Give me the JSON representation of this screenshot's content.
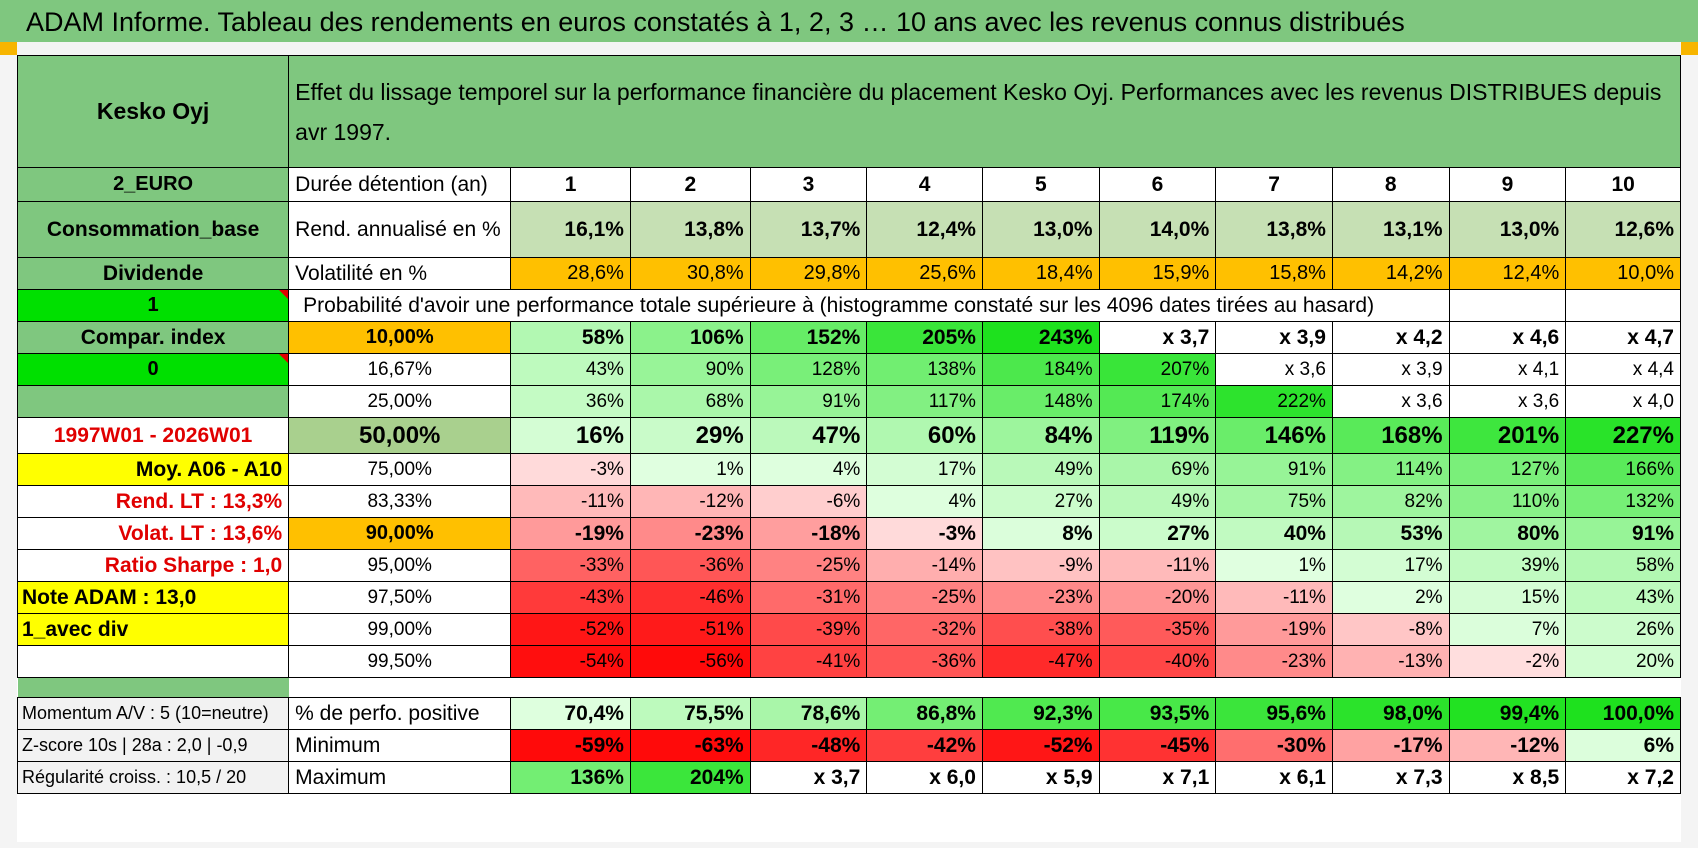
{
  "title": "ADAM Informe. Tableau des rendements en euros constatés à 1, 2, 3 … 10 ans avec les revenus connus distribués",
  "header": {
    "name": "Kesko Oyj",
    "description": "Effet du lissage temporel sur la performance financière du placement Kesko Oyj. Performances avec les revenus DISTRIBUES depuis avr 1997."
  },
  "left_col": {
    "currency": "2_EURO",
    "category": "Consommation_base",
    "dividend": "Dividende",
    "flag1": "1",
    "compar": "Compar. index",
    "flag0": "0",
    "blank": "",
    "period": "1997W01 - 2026W01",
    "moy": "Moy. A06 - A10",
    "rend_lt": "Rend. LT :    13,3%",
    "volat_lt": "Volat. LT :    13,6%",
    "sharpe": "Ratio Sharpe :     1,0",
    "note": "Note ADAM : 13,0",
    "avec_div": "1_avec div",
    "momentum": "Momentum A/V : 5 (10=neutre)",
    "zscore": "Z-score 10s | 28a : 2,0 | -0,9",
    "regularite": "Régularité croiss. : 10,5 / 20"
  },
  "labels": {
    "duree": "Durée détention (an)",
    "rend": "Rend. annualisé en %",
    "vol": "Volatilité en %",
    "prob": "Probabilité d'avoir une performance totale supérieure à (histogramme constaté sur les 4096 dates tirées au hasard)",
    "pct_pos": "% de perfo. positive",
    "minimum": "Minimum",
    "maximum": "Maximum"
  },
  "years": [
    "1",
    "2",
    "3",
    "4",
    "5",
    "6",
    "7",
    "8",
    "9",
    "10"
  ],
  "rend": [
    "16,1%",
    "13,8%",
    "13,7%",
    "12,4%",
    "13,0%",
    "14,0%",
    "13,8%",
    "13,1%",
    "13,0%",
    "12,6%"
  ],
  "vol": [
    "28,6%",
    "30,8%",
    "29,8%",
    "25,6%",
    "18,4%",
    "15,9%",
    "15,8%",
    "14,2%",
    "12,4%",
    "10,0%"
  ],
  "prob_rows": [
    {
      "p": "10,00%",
      "v": [
        "58%",
        "106%",
        "152%",
        "205%",
        "243%",
        "x 3,7",
        "x 3,9",
        "x 4,2",
        "x 4,6",
        "x 4,7"
      ]
    },
    {
      "p": "16,67%",
      "v": [
        "43%",
        "90%",
        "128%",
        "138%",
        "184%",
        "207%",
        "x 3,6",
        "x 3,9",
        "x 4,1",
        "x 4,4"
      ]
    },
    {
      "p": "25,00%",
      "v": [
        "36%",
        "68%",
        "91%",
        "117%",
        "148%",
        "174%",
        "222%",
        "x 3,6",
        "x 3,6",
        "x 4,0"
      ]
    },
    {
      "p": "50,00%",
      "v": [
        "16%",
        "29%",
        "47%",
        "60%",
        "84%",
        "119%",
        "146%",
        "168%",
        "201%",
        "227%"
      ]
    },
    {
      "p": "75,00%",
      "v": [
        "-3%",
        "1%",
        "4%",
        "17%",
        "49%",
        "69%",
        "91%",
        "114%",
        "127%",
        "166%"
      ]
    },
    {
      "p": "83,33%",
      "v": [
        "-11%",
        "-12%",
        "-6%",
        "4%",
        "27%",
        "49%",
        "75%",
        "82%",
        "110%",
        "132%"
      ]
    },
    {
      "p": "90,00%",
      "v": [
        "-19%",
        "-23%",
        "-18%",
        "-3%",
        "8%",
        "27%",
        "40%",
        "53%",
        "80%",
        "91%"
      ]
    },
    {
      "p": "95,00%",
      "v": [
        "-33%",
        "-36%",
        "-25%",
        "-14%",
        "-9%",
        "-11%",
        "1%",
        "17%",
        "39%",
        "58%"
      ]
    },
    {
      "p": "97,50%",
      "v": [
        "-43%",
        "-46%",
        "-31%",
        "-25%",
        "-23%",
        "-20%",
        "-11%",
        "2%",
        "15%",
        "43%"
      ]
    },
    {
      "p": "99,00%",
      "v": [
        "-52%",
        "-51%",
        "-39%",
        "-32%",
        "-38%",
        "-35%",
        "-19%",
        "-8%",
        "7%",
        "26%"
      ]
    },
    {
      "p": "99,50%",
      "v": [
        "-54%",
        "-56%",
        "-41%",
        "-36%",
        "-47%",
        "-40%",
        "-23%",
        "-13%",
        "-2%",
        "20%"
      ]
    }
  ],
  "pct_pos": [
    "70,4%",
    "75,5%",
    "78,6%",
    "86,8%",
    "92,3%",
    "93,5%",
    "95,6%",
    "98,0%",
    "99,4%",
    "100,0%"
  ],
  "minimum": [
    "-59%",
    "-63%",
    "-48%",
    "-42%",
    "-52%",
    "-45%",
    "-30%",
    "-17%",
    "-12%",
    "6%"
  ],
  "maximum": [
    "136%",
    "204%",
    "x 3,7",
    "x 6,0",
    "x 5,9",
    "x 7,1",
    "x 6,1",
    "x 7,3",
    "x 8,5",
    "x 7,2"
  ],
  "colors": {
    "header_green": "#7fc77f",
    "light_green": "#a9d08e",
    "bright_green": "#00e000",
    "orange": "#ffc000",
    "yellow": "#ffff00",
    "red_text": "#e00000"
  }
}
